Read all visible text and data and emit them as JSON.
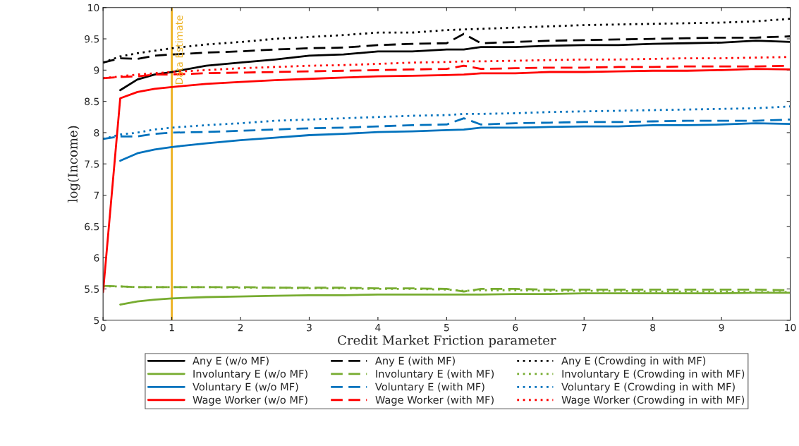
{
  "chart_data": {
    "type": "line",
    "xlabel": "Credit Market Friction parameter",
    "ylabel": "log(Income)",
    "x": [
      0,
      0.25,
      0.5,
      0.75,
      1,
      1.5,
      2,
      2.5,
      3,
      3.5,
      4,
      4.5,
      5,
      5.25,
      5.5,
      6,
      6.5,
      7,
      7.5,
      8,
      8.5,
      9,
      9.5,
      10
    ],
    "xlim": [
      0,
      10
    ],
    "xticks": [
      0,
      1,
      2,
      3,
      4,
      5,
      6,
      7,
      8,
      9,
      10
    ],
    "ylim": [
      5,
      10
    ],
    "yticks": [
      5,
      5.5,
      6,
      6.5,
      7,
      7.5,
      8,
      8.5,
      9,
      9.5,
      10
    ],
    "grid": false,
    "legend": "bottom",
    "marker": "none",
    "ref_lines": [
      {
        "axis": "x",
        "value": 1,
        "label": "Data Estimate",
        "color": "#edb120"
      }
    ],
    "series": [
      {
        "name": "Any E (w/o MF)",
        "color": "#000000",
        "line_style": "solid",
        "values": [
          null,
          8.68,
          8.85,
          8.93,
          8.97,
          9.07,
          9.12,
          9.17,
          9.23,
          9.25,
          9.3,
          9.3,
          9.33,
          9.33,
          9.37,
          9.37,
          9.39,
          9.4,
          9.4,
          9.42,
          9.43,
          9.44,
          9.47,
          9.45
        ]
      },
      {
        "name": "Any E (with MF)",
        "color": "#000000",
        "line_style": "dashed",
        "values": [
          9.12,
          9.19,
          9.18,
          9.23,
          9.25,
          9.28,
          9.3,
          9.33,
          9.35,
          9.36,
          9.4,
          9.42,
          9.43,
          9.58,
          9.43,
          9.45,
          9.47,
          9.48,
          9.49,
          9.5,
          9.51,
          9.52,
          9.52,
          9.54
        ]
      },
      {
        "name": "Any E (Crowding in with MF)",
        "color": "#000000",
        "line_style": "dotted",
        "values": [
          9.12,
          9.22,
          9.27,
          9.31,
          9.35,
          9.41,
          9.45,
          9.5,
          9.53,
          9.56,
          9.6,
          9.6,
          9.64,
          9.65,
          9.66,
          9.68,
          9.7,
          9.72,
          9.73,
          9.74,
          9.75,
          9.76,
          9.78,
          9.82
        ]
      },
      {
        "name": "Involuntary E (w/o MF)",
        "color": "#77ac30",
        "line_style": "solid",
        "values": [
          null,
          5.25,
          5.3,
          5.33,
          5.35,
          5.37,
          5.38,
          5.39,
          5.4,
          5.4,
          5.41,
          5.41,
          5.41,
          5.41,
          5.41,
          5.42,
          5.42,
          5.43,
          5.43,
          5.43,
          5.43,
          5.43,
          5.44,
          5.44
        ]
      },
      {
        "name": "Involuntary E (with MF)",
        "color": "#77ac30",
        "line_style": "dashed",
        "values": [
          5.55,
          5.54,
          5.53,
          5.53,
          5.53,
          5.53,
          5.53,
          5.52,
          5.52,
          5.52,
          5.51,
          5.51,
          5.5,
          5.46,
          5.5,
          5.5,
          5.49,
          5.49,
          5.49,
          5.49,
          5.49,
          5.49,
          5.49,
          5.48
        ]
      },
      {
        "name": "Involuntary E (Crowding in with MF)",
        "color": "#77ac30",
        "line_style": "dotted",
        "values": [
          5.54,
          5.54,
          5.53,
          5.53,
          5.53,
          5.53,
          5.52,
          5.52,
          5.51,
          5.51,
          5.5,
          5.5,
          5.49,
          5.47,
          5.48,
          5.48,
          5.47,
          5.47,
          5.47,
          5.46,
          5.46,
          5.46,
          5.45,
          5.45
        ]
      },
      {
        "name": "Voluntary E (w/o MF)",
        "color": "#0072bd",
        "line_style": "solid",
        "values": [
          null,
          7.55,
          7.67,
          7.73,
          7.77,
          7.83,
          7.88,
          7.92,
          7.96,
          7.98,
          8.01,
          8.02,
          8.04,
          8.05,
          8.08,
          8.08,
          8.09,
          8.1,
          8.1,
          8.12,
          8.12,
          8.13,
          8.15,
          8.14
        ]
      },
      {
        "name": "Voluntary E (with MF)",
        "color": "#0072bd",
        "line_style": "dashed",
        "values": [
          7.9,
          7.94,
          7.94,
          7.98,
          8.0,
          8.01,
          8.03,
          8.05,
          8.07,
          8.08,
          8.1,
          8.12,
          8.13,
          8.23,
          8.13,
          8.15,
          8.16,
          8.17,
          8.17,
          8.18,
          8.19,
          8.19,
          8.19,
          8.21
        ]
      },
      {
        "name": "Voluntary E (Crowding in with MF)",
        "color": "#0072bd",
        "line_style": "dotted",
        "values": [
          7.9,
          7.97,
          8.0,
          8.05,
          8.08,
          8.12,
          8.15,
          8.19,
          8.21,
          8.23,
          8.25,
          8.27,
          8.28,
          8.3,
          8.3,
          8.31,
          8.33,
          8.34,
          8.35,
          8.36,
          8.37,
          8.38,
          8.39,
          8.42
        ]
      },
      {
        "name": "Wage Worker (w/o MF)",
        "color": "#ff0000",
        "line_style": "solid",
        "values": [
          5.45,
          8.55,
          8.65,
          8.7,
          8.73,
          8.78,
          8.81,
          8.84,
          8.86,
          8.88,
          8.9,
          8.91,
          8.92,
          8.93,
          8.95,
          8.95,
          8.97,
          8.97,
          8.98,
          8.99,
          8.99,
          9.0,
          9.02,
          9.01
        ]
      },
      {
        "name": "Wage Worker (with MF)",
        "color": "#ff0000",
        "line_style": "dashed",
        "values": [
          8.87,
          8.89,
          8.9,
          8.93,
          8.93,
          8.95,
          8.96,
          8.97,
          8.98,
          8.99,
          9.0,
          9.01,
          9.02,
          9.07,
          9.02,
          9.03,
          9.04,
          9.04,
          9.05,
          9.05,
          9.06,
          9.06,
          9.06,
          9.07
        ]
      },
      {
        "name": "Wage Worker (Crowding in with MF)",
        "color": "#ff0000",
        "line_style": "dotted",
        "values": [
          8.87,
          8.9,
          8.93,
          8.95,
          8.97,
          9.0,
          9.03,
          9.05,
          9.07,
          9.08,
          9.1,
          9.12,
          9.13,
          9.14,
          9.14,
          9.15,
          9.16,
          9.17,
          9.17,
          9.18,
          9.19,
          9.19,
          9.2,
          9.21
        ]
      }
    ]
  }
}
